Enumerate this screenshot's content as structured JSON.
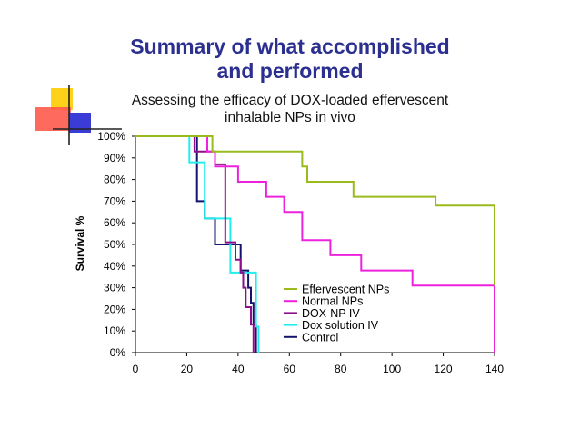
{
  "slide": {
    "title_line1": "Summary of what accomplished",
    "title_line2": "and performed",
    "subtitle_line1": "Assessing the efficacy of DOX-loaded effervescent",
    "subtitle_line2": "inhalable NPs in vivo"
  },
  "chart_data": {
    "type": "line",
    "subtype": "step (Kaplan-Meier survival)",
    "title": "Assessing the efficacy of DOX-loaded effervescent inhalable NPs in vivo",
    "xlabel": "",
    "ylabel": "Survival %",
    "xlim": [
      0,
      140
    ],
    "ylim": [
      0,
      100
    ],
    "x_ticks": [
      "0",
      "20",
      "40",
      "60",
      "80",
      "100",
      "120",
      "140"
    ],
    "y_ticks": [
      "0%",
      "10%",
      "20%",
      "30%",
      "40%",
      "50%",
      "60%",
      "70%",
      "80%",
      "90%",
      "100%"
    ],
    "grid": false,
    "legend_position": "center-right",
    "series": [
      {
        "name": "Effervescent NPs",
        "color": "#99bb1e",
        "points": [
          [
            0,
            100
          ],
          [
            30,
            100
          ],
          [
            30,
            93
          ],
          [
            65,
            93
          ],
          [
            65,
            86
          ],
          [
            67,
            86
          ],
          [
            67,
            79
          ],
          [
            85,
            79
          ],
          [
            85,
            72
          ],
          [
            117,
            72
          ],
          [
            117,
            68
          ],
          [
            140,
            68
          ],
          [
            140,
            31
          ]
        ]
      },
      {
        "name": "Normal NPs",
        "color": "#ee22dd",
        "points": [
          [
            0,
            100
          ],
          [
            28,
            100
          ],
          [
            28,
            93
          ],
          [
            31,
            93
          ],
          [
            31,
            86
          ],
          [
            40,
            86
          ],
          [
            40,
            79
          ],
          [
            51,
            79
          ],
          [
            51,
            72
          ],
          [
            58,
            72
          ],
          [
            58,
            65
          ],
          [
            65,
            65
          ],
          [
            65,
            52
          ],
          [
            76,
            52
          ],
          [
            76,
            45
          ],
          [
            88,
            45
          ],
          [
            88,
            38
          ],
          [
            108,
            38
          ],
          [
            108,
            31
          ],
          [
            140,
            31
          ],
          [
            140,
            0
          ]
        ]
      },
      {
        "name": "DOX-NP IV",
        "color": "#8b0f8b",
        "points": [
          [
            0,
            100
          ],
          [
            23,
            100
          ],
          [
            23,
            93
          ],
          [
            31,
            93
          ],
          [
            31,
            87
          ],
          [
            35,
            87
          ],
          [
            35,
            51
          ],
          [
            39,
            51
          ],
          [
            39,
            43
          ],
          [
            41,
            43
          ],
          [
            41,
            37
          ],
          [
            42,
            37
          ],
          [
            42,
            30
          ],
          [
            43,
            30
          ],
          [
            43,
            21
          ],
          [
            45,
            21
          ],
          [
            45,
            13
          ],
          [
            46,
            13
          ],
          [
            46,
            0
          ]
        ]
      },
      {
        "name": "Dox solution IV",
        "color": "#22eeee",
        "points": [
          [
            0,
            100
          ],
          [
            21,
            100
          ],
          [
            21,
            88
          ],
          [
            27,
            88
          ],
          [
            27,
            62
          ],
          [
            37,
            62
          ],
          [
            37,
            37
          ],
          [
            47,
            37
          ],
          [
            47,
            12
          ],
          [
            48,
            12
          ],
          [
            48,
            0
          ]
        ]
      },
      {
        "name": "Control",
        "color": "#14146e",
        "points": [
          [
            0,
            100
          ],
          [
            24,
            100
          ],
          [
            24,
            70
          ],
          [
            27,
            70
          ],
          [
            27,
            62
          ],
          [
            31,
            62
          ],
          [
            31,
            50
          ],
          [
            41,
            50
          ],
          [
            41,
            38
          ],
          [
            44,
            38
          ],
          [
            44,
            30
          ],
          [
            45,
            30
          ],
          [
            45,
            23
          ],
          [
            46,
            23
          ],
          [
            46,
            13
          ],
          [
            47,
            13
          ],
          [
            47,
            0
          ]
        ]
      }
    ]
  }
}
